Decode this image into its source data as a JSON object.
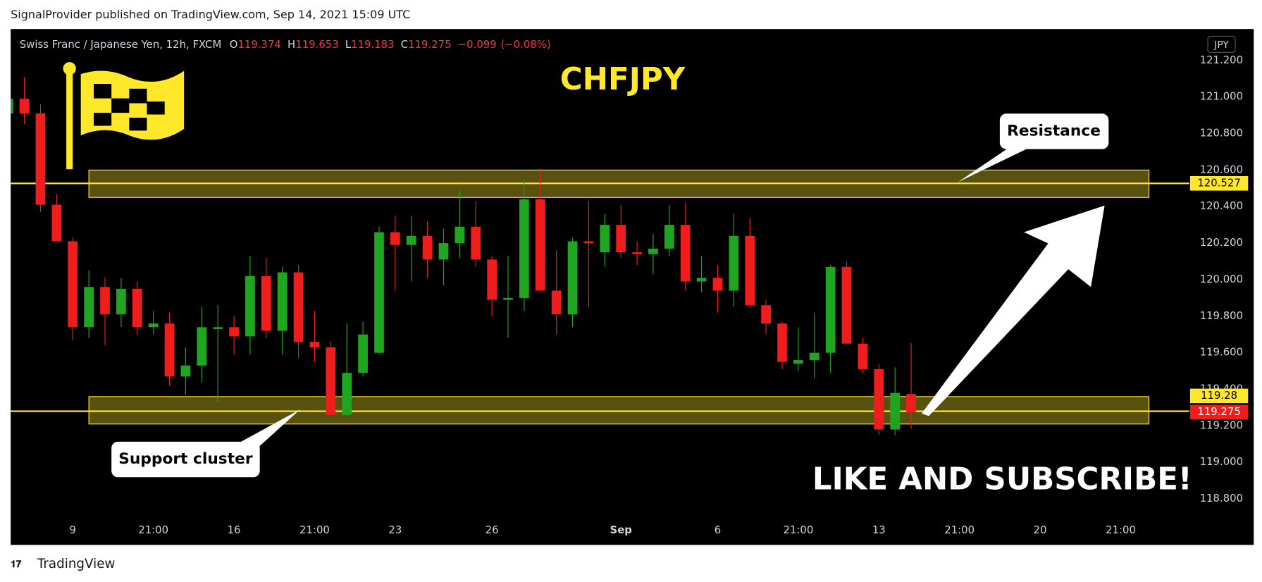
{
  "header": "SignalProvider published on TradingView.com, Sep 14, 2021 15:09 UTC",
  "footer": "TradingView",
  "chart_data": {
    "type": "candlestick",
    "title": "CHFJPY",
    "symbol": "Swiss Franc / Japanese Yen, 12h, FXCM",
    "ohlc_labels": [
      "O",
      "H",
      "L",
      "C"
    ],
    "ohlc": [
      119.374,
      119.653,
      119.183,
      119.275
    ],
    "change": {
      "value": -0.099,
      "label": "−0.099"
    },
    "change_pct": {
      "value": -0.08,
      "label": "(−0.08%)"
    },
    "currency": "JPY",
    "up_color": "#1fa51f",
    "down_color": "#f01d1d",
    "open": [
      120.91,
      120.99,
      120.91,
      120.41,
      120.21,
      119.74,
      119.96,
      119.81,
      119.95,
      119.74,
      119.76,
      119.47,
      119.53,
      119.73,
      119.74,
      119.69,
      120.02,
      119.72,
      120.04,
      119.66,
      119.63,
      119.26,
      119.49,
      119.6,
      120.26,
      120.19,
      120.24,
      120.11,
      120.2,
      120.29,
      120.11,
      119.89,
      119.9,
      120.44,
      119.94,
      119.81,
      120.21,
      120.15,
      120.3,
      120.15,
      120.14,
      120.17,
      120.3,
      119.99,
      120.01,
      119.94,
      120.24,
      119.86,
      119.76,
      119.54,
      119.56,
      119.6,
      120.07,
      119.65,
      119.51,
      119.18,
      119.374
    ],
    "high": [
      121.0,
      121.11,
      120.96,
      120.47,
      120.23,
      120.05,
      120.01,
      120.01,
      119.99,
      119.83,
      119.82,
      119.63,
      119.85,
      119.86,
      119.8,
      120.13,
      120.12,
      120.07,
      120.08,
      119.83,
      119.66,
      119.76,
      119.77,
      120.29,
      120.35,
      120.35,
      120.32,
      120.28,
      120.49,
      120.43,
      120.13,
      120.13,
      120.55,
      120.61,
      120.16,
      120.23,
      120.43,
      120.36,
      120.41,
      120.21,
      120.25,
      120.41,
      120.42,
      120.13,
      120.08,
      120.36,
      120.34,
      119.89,
      119.77,
      119.74,
      119.82,
      120.08,
      120.1,
      119.68,
      119.54,
      119.52,
      119.653
    ],
    "low": [
      120.9,
      120.85,
      120.37,
      120.21,
      119.67,
      119.68,
      119.64,
      119.74,
      119.7,
      119.7,
      119.42,
      119.37,
      119.44,
      119.33,
      119.59,
      119.59,
      119.68,
      119.59,
      119.57,
      119.55,
      119.26,
      119.25,
      119.47,
      119.59,
      119.94,
      119.99,
      120.01,
      119.97,
      120.12,
      120.07,
      119.8,
      119.68,
      119.83,
      119.94,
      119.7,
      119.74,
      119.85,
      120.07,
      120.12,
      120.08,
      120.03,
      120.13,
      119.94,
      119.93,
      119.82,
      119.85,
      119.85,
      119.7,
      119.51,
      119.5,
      119.46,
      119.49,
      119.65,
      119.49,
      119.15,
      119.15,
      119.183
    ],
    "close": [
      120.99,
      120.91,
      120.41,
      120.21,
      119.74,
      119.96,
      119.81,
      119.95,
      119.74,
      119.76,
      119.47,
      119.53,
      119.74,
      119.74,
      119.69,
      120.02,
      119.72,
      120.04,
      119.66,
      119.63,
      119.26,
      119.49,
      119.7,
      120.26,
      120.19,
      120.24,
      120.11,
      120.2,
      120.29,
      120.11,
      119.89,
      119.9,
      120.44,
      119.94,
      119.81,
      120.21,
      120.2,
      120.3,
      120.15,
      120.14,
      120.17,
      120.3,
      119.99,
      120.01,
      119.94,
      120.24,
      119.86,
      119.76,
      119.55,
      119.56,
      119.6,
      120.07,
      119.65,
      119.51,
      119.18,
      119.38,
      119.275
    ],
    "xlim": [
      0.15,
      73.25
    ],
    "xticks": [
      {
        "value": 4,
        "label": "9"
      },
      {
        "value": 9,
        "label": "21:00"
      },
      {
        "value": 14,
        "label": "16"
      },
      {
        "value": 19,
        "label": "21:00"
      },
      {
        "value": 24,
        "label": "23"
      },
      {
        "value": 30,
        "label": "26"
      },
      {
        "value": 38,
        "label": "Sep"
      },
      {
        "value": 44,
        "label": "6"
      },
      {
        "value": 49,
        "label": "21:00"
      },
      {
        "value": 54,
        "label": "13"
      },
      {
        "value": 59,
        "label": "21:00"
      },
      {
        "value": 64,
        "label": "20"
      },
      {
        "value": 69,
        "label": "21:00"
      }
    ],
    "ylim": [
      118.707,
      121.372
    ],
    "yticks": [
      {
        "value": 118.8,
        "label": "118.800"
      },
      {
        "value": 119.0,
        "label": "119.000"
      },
      {
        "value": 119.2,
        "label": "119.200"
      },
      {
        "value": 119.4,
        "label": "119.400"
      },
      {
        "value": 119.6,
        "label": "119.600"
      },
      {
        "value": 119.8,
        "label": "119.800"
      },
      {
        "value": 120.0,
        "label": "120.000"
      },
      {
        "value": 120.2,
        "label": "120.200"
      },
      {
        "value": 120.4,
        "label": "120.400"
      },
      {
        "value": 120.6,
        "label": "120.600"
      },
      {
        "value": 120.8,
        "label": "120.800"
      },
      {
        "value": 121.0,
        "label": "121.000"
      },
      {
        "value": 121.2,
        "label": "121.200"
      }
    ],
    "grid": false,
    "zones": [
      {
        "name": "Resistance",
        "low": 120.45,
        "high": 120.6,
        "line": 120.527
      },
      {
        "name": "Support cluster",
        "low": 119.21,
        "high": 119.36,
        "line": 119.28
      }
    ],
    "zone_color": "#ffe82a",
    "price_labels": [
      {
        "value": 120.527,
        "color": "#ffe82a"
      },
      {
        "value": 119.28,
        "color": "#ffe82a"
      },
      {
        "value": 119.275,
        "color": "#f01d1d"
      }
    ],
    "annotation": "LIKE AND SUBSCRIBE!"
  }
}
